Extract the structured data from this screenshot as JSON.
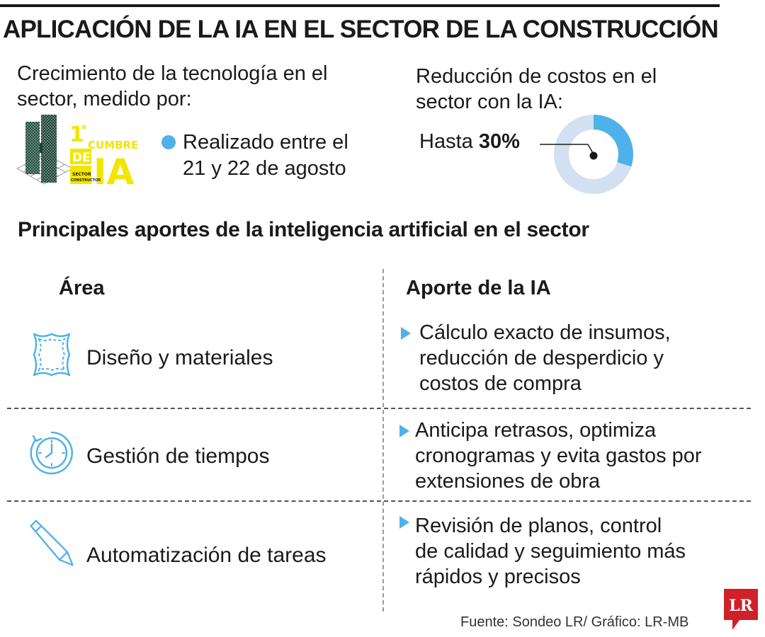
{
  "header": {
    "title": "APLICACIÓN DE LA IA EN EL SECTOR DE LA CONSTRUCCIÓN"
  },
  "growth": {
    "lead_line1": "Crecimiento de la tecnología en el",
    "lead_line2": "sector, medido por:",
    "event": {
      "logo_text_top": "CUMBRE",
      "logo_text_mid": "DE",
      "logo_text_big": "IA",
      "logo_ordinal": "1",
      "logo_sup": "a",
      "logo_sub1": "SECTOR",
      "logo_sub2": "CONSTRUCTOR",
      "line1": "Realizado entre el",
      "line2": "21 y 22 de agosto"
    }
  },
  "cost": {
    "lead_line1": "Reducción de costos en el",
    "lead_line2": "sector con la IA:",
    "prefix": "Hasta",
    "value_label": "30%",
    "value": 30
  },
  "contributions": {
    "section_title": "Principales aportes de la inteligencia artificial en el sector",
    "col_area": "Área",
    "col_ai": "Aporte de la IA",
    "rows": [
      {
        "area": "Diseño y materiales",
        "icon": "leather-material-icon",
        "lines": [
          "Cálculo exacto de insumos,",
          "reducción de desperdicio y",
          "costos de compra"
        ]
      },
      {
        "area": "Gestión de tiempos",
        "icon": "clock-icon",
        "lines": [
          "Anticipa retrasos, optimiza",
          "cronogramas y evita gastos por",
          "extensiones de obra"
        ]
      },
      {
        "area": "Automatización de tareas",
        "icon": "pencil-icon",
        "lines": [
          "Revisión de planos, control",
          "de calidad y seguimiento más",
          "rápidos y precisos"
        ]
      }
    ]
  },
  "footer": {
    "source": "Fuente:  Sondeo LR/ Gráfico: LR-MB",
    "logo_text": "LR"
  },
  "colors": {
    "accent": "#4fb1ea",
    "donut_track": "#d3e0f1",
    "logo_yellow": "#f2e600",
    "brand_red": "#d0202a",
    "text": "#1a1a1a"
  }
}
